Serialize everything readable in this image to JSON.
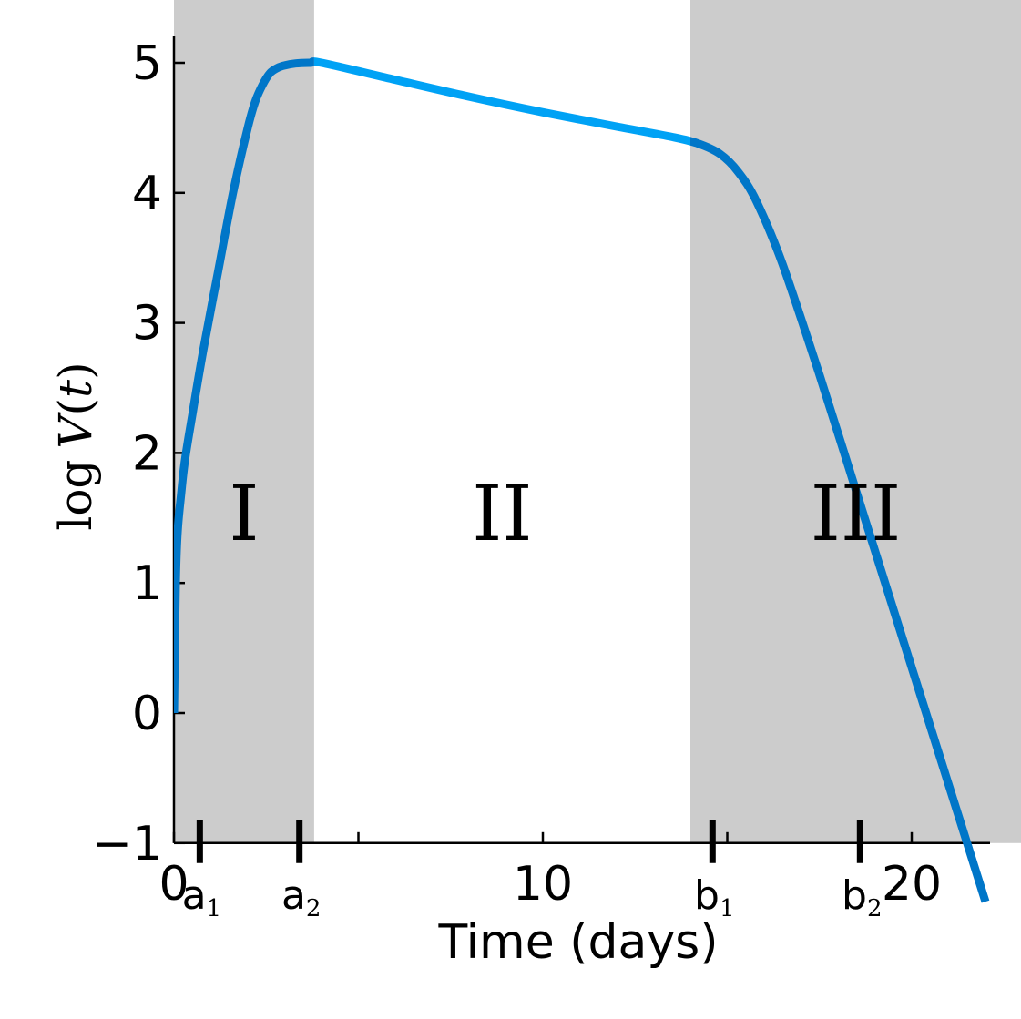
{
  "chart_data": {
    "type": "line",
    "title": "",
    "xlabel": "Time (days)",
    "ylabel": {
      "log": "log",
      "var": "V",
      "open": "(",
      "arg": "t",
      "close": ")"
    },
    "xlim": [
      0,
      22
    ],
    "ylim": [
      -1,
      5.2
    ],
    "xticks": [
      {
        "value": 0,
        "label": "0"
      },
      {
        "value": 10,
        "label": "10"
      },
      {
        "value": 20,
        "label": "20"
      }
    ],
    "minor_xticks": [
      5,
      15
    ],
    "yticks": [
      {
        "value": -1,
        "label": "−1"
      },
      {
        "value": 0,
        "label": "0"
      },
      {
        "value": 1,
        "label": "1"
      },
      {
        "value": 2,
        "label": "2"
      },
      {
        "value": 3,
        "label": "3"
      },
      {
        "value": 4,
        "label": "4"
      },
      {
        "value": 5,
        "label": "5"
      }
    ],
    "phase_markers": [
      {
        "value": 0.7,
        "base": "a",
        "sub": "1"
      },
      {
        "value": 3.4,
        "base": "a",
        "sub": "2"
      },
      {
        "value": 14.6,
        "base": "b",
        "sub": "1"
      },
      {
        "value": 18.6,
        "base": "b",
        "sub": "2"
      }
    ],
    "shaded_regions": [
      {
        "from": 0,
        "to": 3.8,
        "label": "I",
        "shaded": true
      },
      {
        "from": 3.8,
        "to": 14.0,
        "label": "II",
        "shaded": false
      },
      {
        "from": 14.0,
        "to": 23.2,
        "label": "III",
        "shaded": true
      }
    ],
    "region_label_y": 1.5,
    "grid": false,
    "legend": "none",
    "series": [
      {
        "x": [
          0,
          0.05,
          0.1,
          0.2,
          0.3,
          0.5,
          0.8,
          1.2,
          1.6,
          2.0,
          2.2,
          2.4,
          2.6,
          2.8,
          3.0,
          3.3,
          3.7,
          4.0,
          6.0,
          8.0,
          10.0,
          12.0,
          13.5,
          14.2,
          14.8,
          15.3,
          15.8,
          16.5,
          17.5,
          18.5,
          19.5,
          20.5,
          21.5,
          22.0
        ],
        "y": [
          0,
          1.0,
          1.4,
          1.7,
          1.95,
          2.3,
          2.8,
          3.4,
          4.0,
          4.5,
          4.7,
          4.83,
          4.92,
          4.96,
          4.98,
          4.995,
          5.0,
          5.0,
          4.87,
          4.74,
          4.62,
          4.51,
          4.43,
          4.38,
          4.3,
          4.16,
          3.93,
          3.45,
          2.6,
          1.7,
          0.8,
          -0.1,
          -1.0,
          -1.45
        ]
      }
    ],
    "colors": {
      "line_light": "#00a2f5",
      "line_dark": "#0076c8",
      "shade": "#cccccc",
      "axis": "#000000"
    }
  }
}
